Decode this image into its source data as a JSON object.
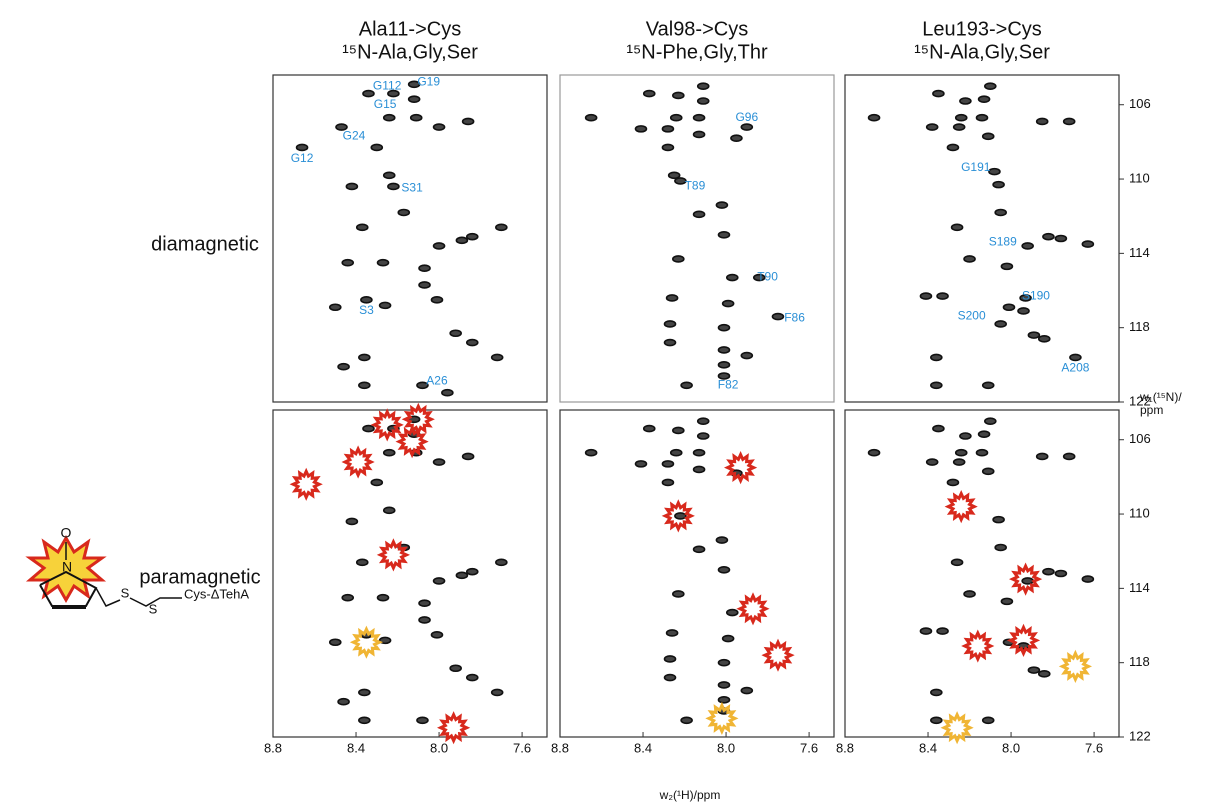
{
  "figure": {
    "x_label": "w₂(¹H)/ppm",
    "y_label": "w₁(¹⁵N)/",
    "y_label_unit": "ppm",
    "row_labels": [
      "diamagnetic",
      "paramagnetic"
    ],
    "molecule": {
      "atoms": [
        "O",
        "N",
        "S",
        "S"
      ],
      "label": "Cys-ΔTehA"
    }
  },
  "chart_data": [
    {
      "type": "scatter",
      "title": "Ala11->Cys",
      "subtitle": "¹⁵N-Ala,Gly,Ser",
      "xlim": [
        8.8,
        7.48
      ],
      "ylim": [
        104.4,
        122
      ],
      "series": [
        {
          "marker": "contour",
          "color": "#111111",
          "x": [
            8.66,
            8.47,
            8.34,
            8.22,
            8.12,
            8.12,
            8.3,
            8.11,
            8.24,
            8.0,
            7.86,
            8.24,
            8.22,
            8.42,
            8.17,
            8.37,
            7.89,
            7.84,
            8.0,
            8.27,
            8.07,
            8.44,
            8.07,
            8.35,
            8.5,
            8.26,
            8.01,
            7.92,
            7.84,
            7.72,
            8.36,
            8.46,
            8.36,
            8.08,
            7.96,
            7.7
          ],
          "y": [
            108.3,
            107.2,
            105.4,
            105.4,
            105.7,
            104.9,
            108.3,
            106.7,
            106.7,
            107.2,
            106.9,
            109.8,
            110.4,
            110.4,
            111.8,
            112.6,
            113.3,
            113.1,
            113.6,
            114.5,
            114.8,
            114.5,
            115.7,
            116.5,
            116.9,
            116.8,
            116.5,
            118.3,
            118.8,
            119.6,
            119.6,
            120.1,
            121.1,
            121.1,
            121.5,
            112.6
          ]
        }
      ],
      "annotations": [
        {
          "text": "G19",
          "x": 8.05,
          "y": 104.8
        },
        {
          "text": "G112",
          "x": 8.25,
          "y": 105.0
        },
        {
          "text": "G15",
          "x": 8.26,
          "y": 106.0
        },
        {
          "text": "G24",
          "x": 8.41,
          "y": 107.7
        },
        {
          "text": "G12",
          "x": 8.66,
          "y": 108.9
        },
        {
          "text": "S31",
          "x": 8.13,
          "y": 110.5
        },
        {
          "text": "S3",
          "x": 8.35,
          "y": 117.1
        },
        {
          "text": "A26",
          "x": 8.01,
          "y": 120.9
        }
      ]
    },
    {
      "type": "scatter",
      "title": "Val98->Cys",
      "subtitle": "¹⁵N-Phe,Gly,Thr",
      "xlim": [
        8.8,
        7.48
      ],
      "ylim": [
        104.4,
        122
      ],
      "series": [
        {
          "marker": "contour",
          "color": "#111111",
          "x": [
            8.65,
            8.37,
            8.23,
            8.11,
            8.11,
            8.24,
            8.13,
            8.41,
            8.28,
            8.13,
            7.95,
            7.9,
            8.28,
            8.25,
            8.22,
            8.02,
            8.13,
            8.01,
            8.23,
            7.97,
            7.84,
            8.26,
            7.99,
            8.27,
            8.01,
            7.75,
            8.27,
            8.01,
            7.9,
            8.01,
            8.19,
            8.01
          ],
          "y": [
            106.7,
            105.4,
            105.5,
            105.8,
            105.0,
            106.7,
            106.7,
            107.3,
            107.3,
            107.6,
            107.8,
            107.2,
            108.3,
            109.8,
            110.1,
            111.4,
            111.9,
            113.0,
            114.3,
            115.3,
            115.3,
            116.4,
            116.7,
            117.8,
            118.0,
            117.4,
            118.8,
            119.2,
            119.5,
            120.0,
            121.1,
            120.6
          ]
        }
      ],
      "annotations": [
        {
          "text": "G96",
          "x": 7.9,
          "y": 106.7
        },
        {
          "text": "T89",
          "x": 8.15,
          "y": 110.4
        },
        {
          "text": "T90",
          "x": 7.8,
          "y": 115.3
        },
        {
          "text": "F86",
          "x": 7.67,
          "y": 117.5
        },
        {
          "text": "F82",
          "x": 7.99,
          "y": 121.1
        }
      ]
    },
    {
      "type": "scatter",
      "title": "Leu193->Cys",
      "subtitle": "¹⁵N-Ala,Gly,Ser",
      "xlim": [
        8.8,
        7.48
      ],
      "ylim": [
        104.4,
        122
      ],
      "yticks": [
        106,
        110,
        114,
        118,
        122
      ],
      "series": [
        {
          "marker": "contour",
          "color": "#111111",
          "x": [
            8.66,
            8.35,
            8.22,
            8.13,
            8.1,
            8.24,
            8.14,
            8.38,
            8.25,
            7.85,
            7.72,
            8.11,
            8.28,
            8.08,
            8.06,
            8.05,
            8.26,
            7.82,
            7.76,
            7.92,
            7.63,
            8.2,
            8.02,
            8.41,
            8.33,
            7.93,
            8.01,
            7.94,
            7.89,
            7.84,
            8.05,
            8.36,
            8.36,
            8.11,
            7.69
          ],
          "y": [
            106.7,
            105.4,
            105.8,
            105.7,
            105.0,
            106.7,
            106.7,
            107.2,
            107.2,
            106.9,
            106.9,
            107.7,
            108.3,
            109.6,
            110.3,
            111.8,
            112.6,
            113.1,
            113.2,
            113.6,
            113.5,
            114.3,
            114.7,
            116.3,
            116.3,
            116.4,
            116.9,
            117.1,
            118.4,
            118.6,
            117.8,
            119.6,
            121.1,
            121.1,
            119.6
          ]
        }
      ],
      "annotations": [
        {
          "text": "G191",
          "x": 8.17,
          "y": 109.4
        },
        {
          "text": "S189",
          "x": 8.04,
          "y": 113.4
        },
        {
          "text": "S190",
          "x": 7.88,
          "y": 116.3
        },
        {
          "text": "S200",
          "x": 8.19,
          "y": 117.4
        },
        {
          "text": "A208",
          "x": 7.69,
          "y": 120.2
        }
      ]
    },
    {
      "type": "scatter",
      "xlim": [
        8.8,
        7.48
      ],
      "ylim": [
        104.4,
        122
      ],
      "xticks": [
        8.8,
        8.4,
        {
          "value": 8,
          "label": "8.0"
        },
        7.6
      ],
      "series": [
        {
          "marker": "contour",
          "color": "#111111",
          "x": [
            8.34,
            8.22,
            8.12,
            8.12,
            8.3,
            8.11,
            8.24,
            8.0,
            7.86,
            8.24,
            8.42,
            8.17,
            8.37,
            7.89,
            7.84,
            8.0,
            8.27,
            8.07,
            8.44,
            8.07,
            8.35,
            8.5,
            8.26,
            8.01,
            7.92,
            7.84,
            7.72,
            8.36,
            8.46,
            8.36,
            8.08,
            7.7
          ],
          "y": [
            105.4,
            105.4,
            105.7,
            104.9,
            108.3,
            106.7,
            106.7,
            107.2,
            106.9,
            109.8,
            110.4,
            111.8,
            112.6,
            113.3,
            113.1,
            113.6,
            114.5,
            114.8,
            114.5,
            115.7,
            116.5,
            116.9,
            116.8,
            116.5,
            118.3,
            118.8,
            119.6,
            119.6,
            120.1,
            121.1,
            121.1,
            112.6
          ]
        },
        {
          "marker": "star",
          "color": "#d8291c",
          "x": [
            8.64,
            8.39,
            8.25,
            8.1,
            8.13,
            8.22,
            7.93
          ],
          "y": [
            108.4,
            107.2,
            105.2,
            104.9,
            106.1,
            112.2,
            121.5
          ]
        },
        {
          "marker": "star",
          "color": "#f0b534",
          "x": [
            8.35
          ],
          "y": [
            116.9
          ]
        }
      ]
    },
    {
      "type": "scatter",
      "xlim": [
        8.8,
        7.48
      ],
      "ylim": [
        104.4,
        122
      ],
      "xticks": [
        8.8,
        8.4,
        {
          "value": 8,
          "label": "8.0"
        },
        7.6
      ],
      "series": [
        {
          "marker": "contour",
          "color": "#111111",
          "x": [
            8.65,
            8.37,
            8.23,
            8.11,
            8.11,
            8.24,
            8.13,
            8.41,
            8.28,
            8.13,
            7.95,
            8.28,
            8.22,
            8.02,
            8.13,
            8.01,
            8.23,
            7.97,
            8.26,
            7.99,
            8.27,
            8.01,
            8.27,
            8.01,
            7.9,
            8.01,
            8.19,
            8.01
          ],
          "y": [
            106.7,
            105.4,
            105.5,
            105.8,
            105.0,
            106.7,
            106.7,
            107.3,
            107.3,
            107.6,
            107.8,
            108.3,
            110.1,
            111.4,
            111.9,
            113.0,
            114.3,
            115.3,
            116.4,
            116.7,
            117.8,
            118.0,
            118.8,
            119.2,
            119.5,
            120.0,
            121.1,
            120.6
          ]
        },
        {
          "marker": "star",
          "color": "#d8291c",
          "x": [
            7.93,
            8.23,
            7.87,
            7.75
          ],
          "y": [
            107.5,
            110.1,
            115.1,
            117.6
          ]
        },
        {
          "marker": "star",
          "color": "#f0b534",
          "x": [
            8.02
          ],
          "y": [
            121.0
          ]
        }
      ]
    },
    {
      "type": "scatter",
      "xlim": [
        8.8,
        7.48
      ],
      "ylim": [
        104.4,
        122
      ],
      "xticks": [
        8.8,
        8.4,
        {
          "value": 8,
          "label": "8.0"
        },
        7.6
      ],
      "yticks": [
        106,
        110,
        114,
        118,
        122
      ],
      "series": [
        {
          "marker": "contour",
          "color": "#111111",
          "x": [
            8.66,
            8.35,
            8.22,
            8.13,
            8.1,
            8.24,
            8.14,
            8.38,
            8.25,
            7.85,
            7.72,
            8.11,
            8.28,
            8.06,
            8.05,
            8.26,
            7.82,
            7.76,
            7.92,
            7.63,
            8.2,
            8.02,
            8.41,
            8.33,
            8.01,
            7.94,
            7.89,
            7.84,
            8.36,
            8.36,
            8.11
          ],
          "y": [
            106.7,
            105.4,
            105.8,
            105.7,
            105.0,
            106.7,
            106.7,
            107.2,
            107.2,
            106.9,
            106.9,
            107.7,
            108.3,
            110.3,
            111.8,
            112.6,
            113.1,
            113.2,
            113.6,
            113.5,
            114.3,
            114.7,
            116.3,
            116.3,
            116.9,
            117.1,
            118.4,
            118.6,
            119.6,
            121.1,
            121.1
          ]
        },
        {
          "marker": "star",
          "color": "#d8291c",
          "x": [
            8.24,
            7.93,
            8.16,
            7.94
          ],
          "y": [
            109.6,
            113.5,
            117.1,
            116.8
          ]
        },
        {
          "marker": "star",
          "color": "#f0b534",
          "x": [
            7.69,
            8.26
          ],
          "y": [
            118.2,
            121.5
          ]
        }
      ]
    }
  ]
}
